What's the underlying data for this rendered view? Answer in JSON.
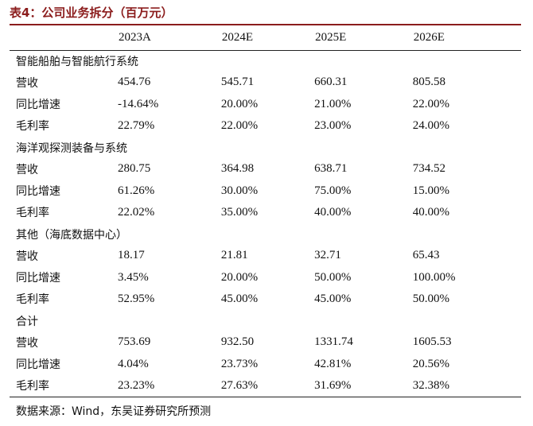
{
  "title": "表4：公司业务拆分（百万元）",
  "header": [
    "2023A",
    "2024E",
    "2025E",
    "2026E"
  ],
  "sections": [
    {
      "name": "智能船舶与智能航行系统",
      "rows": [
        {
          "label": "营收",
          "values": [
            "454.76",
            "545.71",
            "660.31",
            "805.58"
          ]
        },
        {
          "label": "同比增速",
          "values": [
            "-14.64%",
            "20.00%",
            "21.00%",
            "22.00%"
          ]
        },
        {
          "label": "毛利率",
          "values": [
            "22.79%",
            "22.00%",
            "23.00%",
            "24.00%"
          ]
        }
      ]
    },
    {
      "name": "海洋观探测装备与系统",
      "rows": [
        {
          "label": "营收",
          "values": [
            "280.75",
            "364.98",
            "638.71",
            "734.52"
          ]
        },
        {
          "label": "同比增速",
          "values": [
            "61.26%",
            "30.00%",
            "75.00%",
            "15.00%"
          ]
        },
        {
          "label": "毛利率",
          "values": [
            "22.02%",
            "35.00%",
            "40.00%",
            "40.00%"
          ]
        }
      ]
    },
    {
      "name": "其他（海底数据中心）",
      "rows": [
        {
          "label": "营收",
          "values": [
            "18.17",
            "21.81",
            "32.71",
            "65.43"
          ]
        },
        {
          "label": "同比增速",
          "values": [
            "3.45%",
            "20.00%",
            "50.00%",
            "100.00%"
          ]
        },
        {
          "label": "毛利率",
          "values": [
            "52.95%",
            "45.00%",
            "45.00%",
            "50.00%"
          ]
        }
      ]
    },
    {
      "name": "合计",
      "rows": [
        {
          "label": "营收",
          "values": [
            "753.69",
            "932.50",
            "1331.74",
            "1605.53"
          ]
        },
        {
          "label": "同比增速",
          "values": [
            "4.04%",
            "23.73%",
            "42.81%",
            "20.56%"
          ]
        },
        {
          "label": "毛利率",
          "values": [
            "23.23%",
            "27.63%",
            "31.69%",
            "32.38%"
          ]
        }
      ]
    }
  ],
  "source": "数据来源：Wind，东吴证券研究所预测"
}
